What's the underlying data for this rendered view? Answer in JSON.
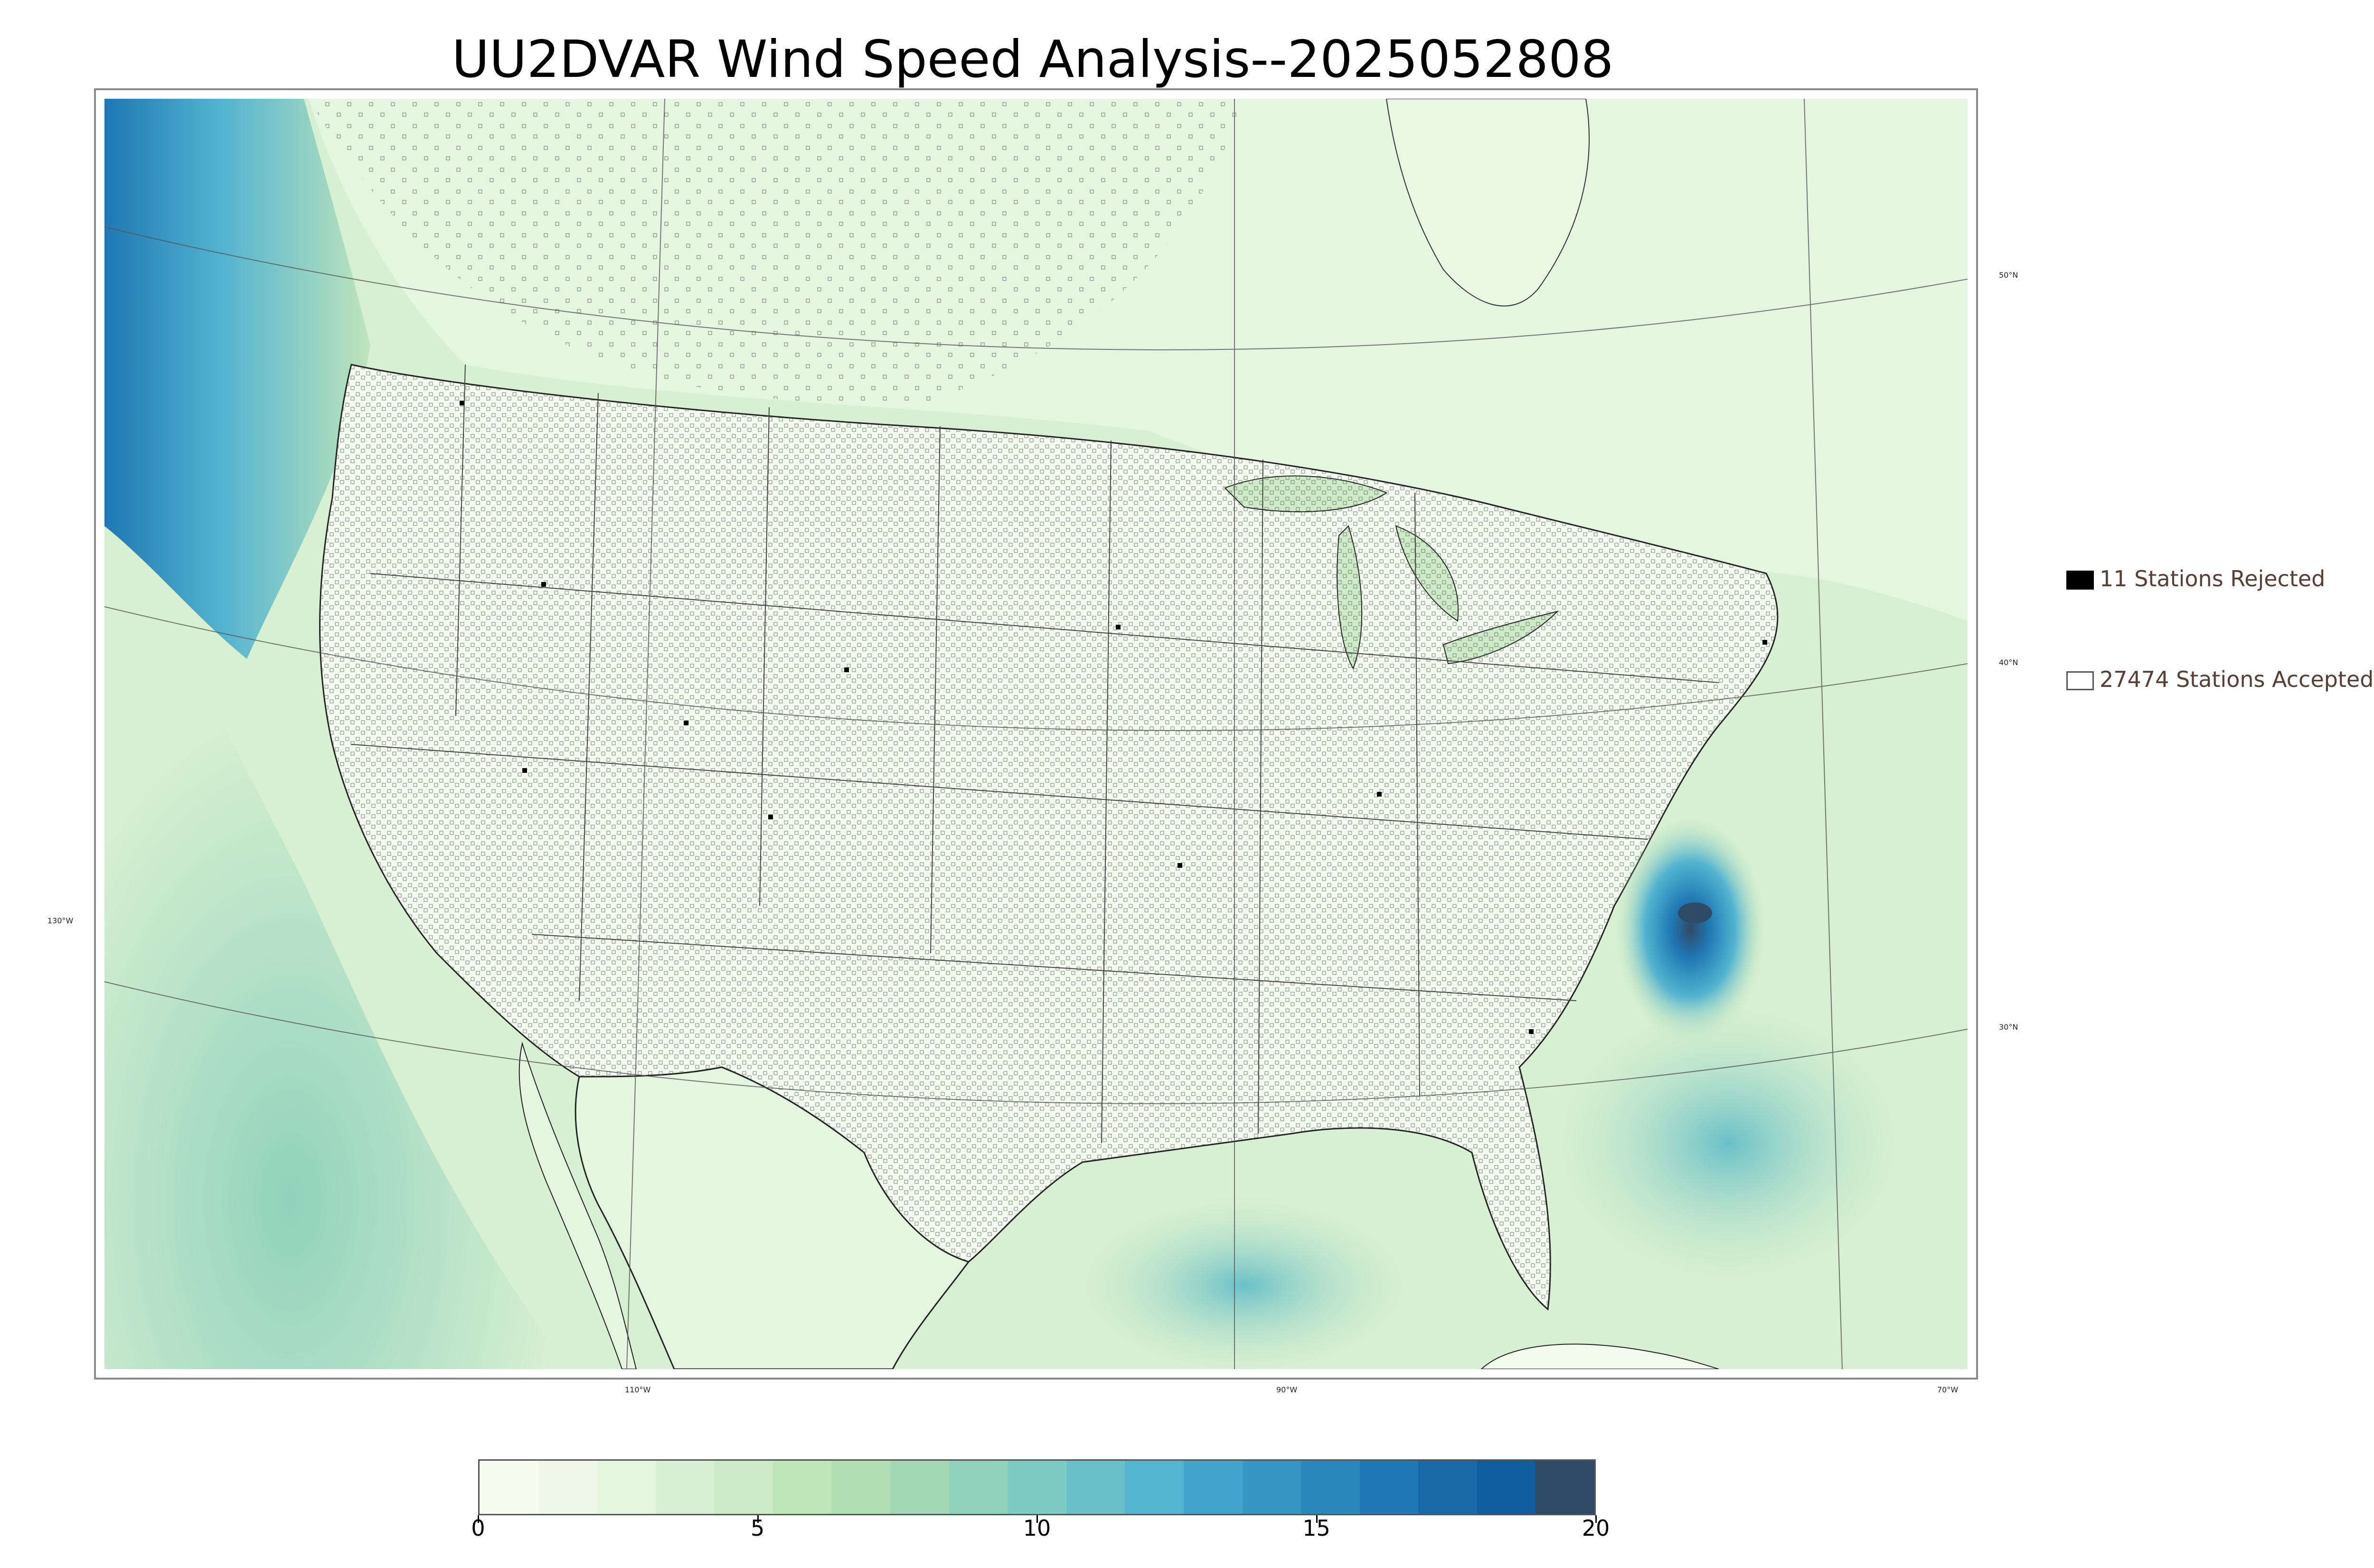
{
  "title": "UU2DVAR Wind Speed Analysis--2025052808",
  "map": {
    "lon_labels": [
      "110°W",
      "90°W",
      "70°W"
    ],
    "lat_labels": [
      "50°N",
      "40°N",
      "30°N"
    ],
    "west_label": "130°W"
  },
  "legend": {
    "rejected": "11 Stations Rejected",
    "accepted": "27474 Stations Accepted"
  },
  "colorbar": {
    "min": 0,
    "max": 20,
    "ticks": [
      "0",
      "5",
      "10",
      "15",
      "20"
    ],
    "colors": [
      "#f7fcf0",
      "#eef9e9",
      "#e4f5e0",
      "#d8f0d2",
      "#cdebc6",
      "#bfe5bb",
      "#b0dfb3",
      "#a2d9b4",
      "#91d2bc",
      "#7ecbc3",
      "#69c0c8",
      "#55b4d0",
      "#44a5cc",
      "#3896c4",
      "#2c87bc",
      "#2078b4",
      "#1a6aa8",
      "#0f5d9d",
      "#2f4a66"
    ]
  },
  "colors": {
    "land_light": "#f3fbee",
    "land_mid": "#d4efcc",
    "ocean": "#b9e3c2",
    "deep_wind": "#1f78b4",
    "peak": "#2f4a66",
    "border": "#333333",
    "rejected_marker": "#000000"
  }
}
